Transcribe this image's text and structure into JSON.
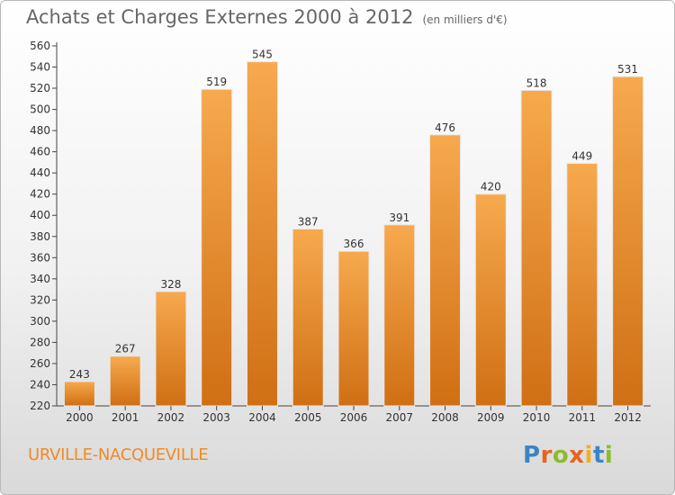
{
  "header": {
    "title": "Achats et Charges Externes 2000 à 2012",
    "unit": "(en milliers d'€)"
  },
  "footer": {
    "location": "URVILLE-NACQUEVILLE",
    "logo": "Proxiti"
  },
  "colors": {
    "bar_light": "#f7a94e",
    "bar_dark": "#d06f14",
    "axis": "#444444",
    "text": "#333333",
    "logo": [
      "#3b84c4",
      "#e8631c",
      "#8cbc2c",
      "#e8631c",
      "#f2b01e",
      "#3b84c4",
      "#8cbc2c"
    ]
  },
  "chart_data": {
    "type": "bar",
    "title": "Achats et Charges Externes 2000 à 2012",
    "subtitle": "(en milliers d'€)",
    "categories": [
      "2000",
      "2001",
      "2002",
      "2003",
      "2004",
      "2005",
      "2006",
      "2007",
      "2008",
      "2009",
      "2010",
      "2011",
      "2012"
    ],
    "values": [
      243,
      267,
      328,
      519,
      545,
      387,
      366,
      391,
      476,
      420,
      518,
      449,
      531
    ],
    "ylim": [
      220,
      560
    ],
    "yticks": [
      220,
      240,
      260,
      280,
      300,
      320,
      340,
      360,
      380,
      400,
      420,
      440,
      460,
      480,
      500,
      520,
      540,
      560
    ],
    "grid": false,
    "legend": "none"
  }
}
